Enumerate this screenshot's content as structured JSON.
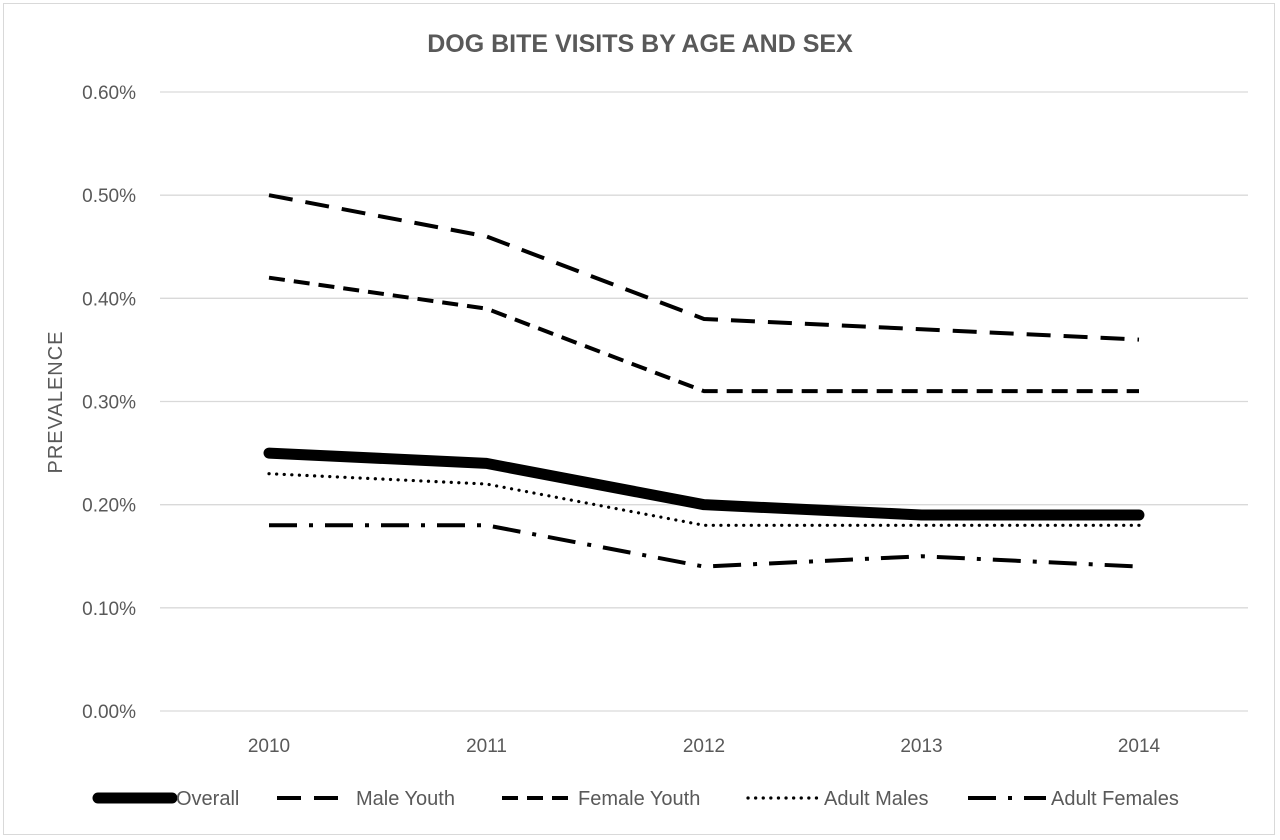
{
  "chart_data": {
    "type": "line",
    "title": "DOG BITE VISITS BY AGE AND SEX",
    "xlabel": "",
    "ylabel": "PREVALENCE",
    "x": [
      "2010",
      "2011",
      "2012",
      "2013",
      "2014"
    ],
    "ylim": [
      0,
      0.6
    ],
    "yticks": [
      0,
      0.1,
      0.2,
      0.3,
      0.4,
      0.5,
      0.6
    ],
    "ytick_labels": [
      "0.00%",
      "0.10%",
      "0.20%",
      "0.30%",
      "0.40%",
      "0.50%",
      "0.60%"
    ],
    "grid": true,
    "legend_position": "bottom",
    "series": [
      {
        "name": "Overall",
        "values": [
          0.25,
          0.24,
          0.2,
          0.19,
          0.19
        ],
        "style": "solid-thick",
        "color": "#000000"
      },
      {
        "name": "Male Youth",
        "values": [
          0.5,
          0.46,
          0.38,
          0.37,
          0.36
        ],
        "style": "long-dash",
        "color": "#000000"
      },
      {
        "name": "Female Youth",
        "values": [
          0.42,
          0.39,
          0.31,
          0.31,
          0.31
        ],
        "style": "dash",
        "color": "#000000"
      },
      {
        "name": "Adult Males",
        "values": [
          0.23,
          0.22,
          0.18,
          0.18,
          0.18
        ],
        "style": "dot",
        "color": "#000000"
      },
      {
        "name": "Adult Females",
        "values": [
          0.18,
          0.18,
          0.14,
          0.15,
          0.14
        ],
        "style": "dash-dot",
        "color": "#000000"
      }
    ]
  }
}
